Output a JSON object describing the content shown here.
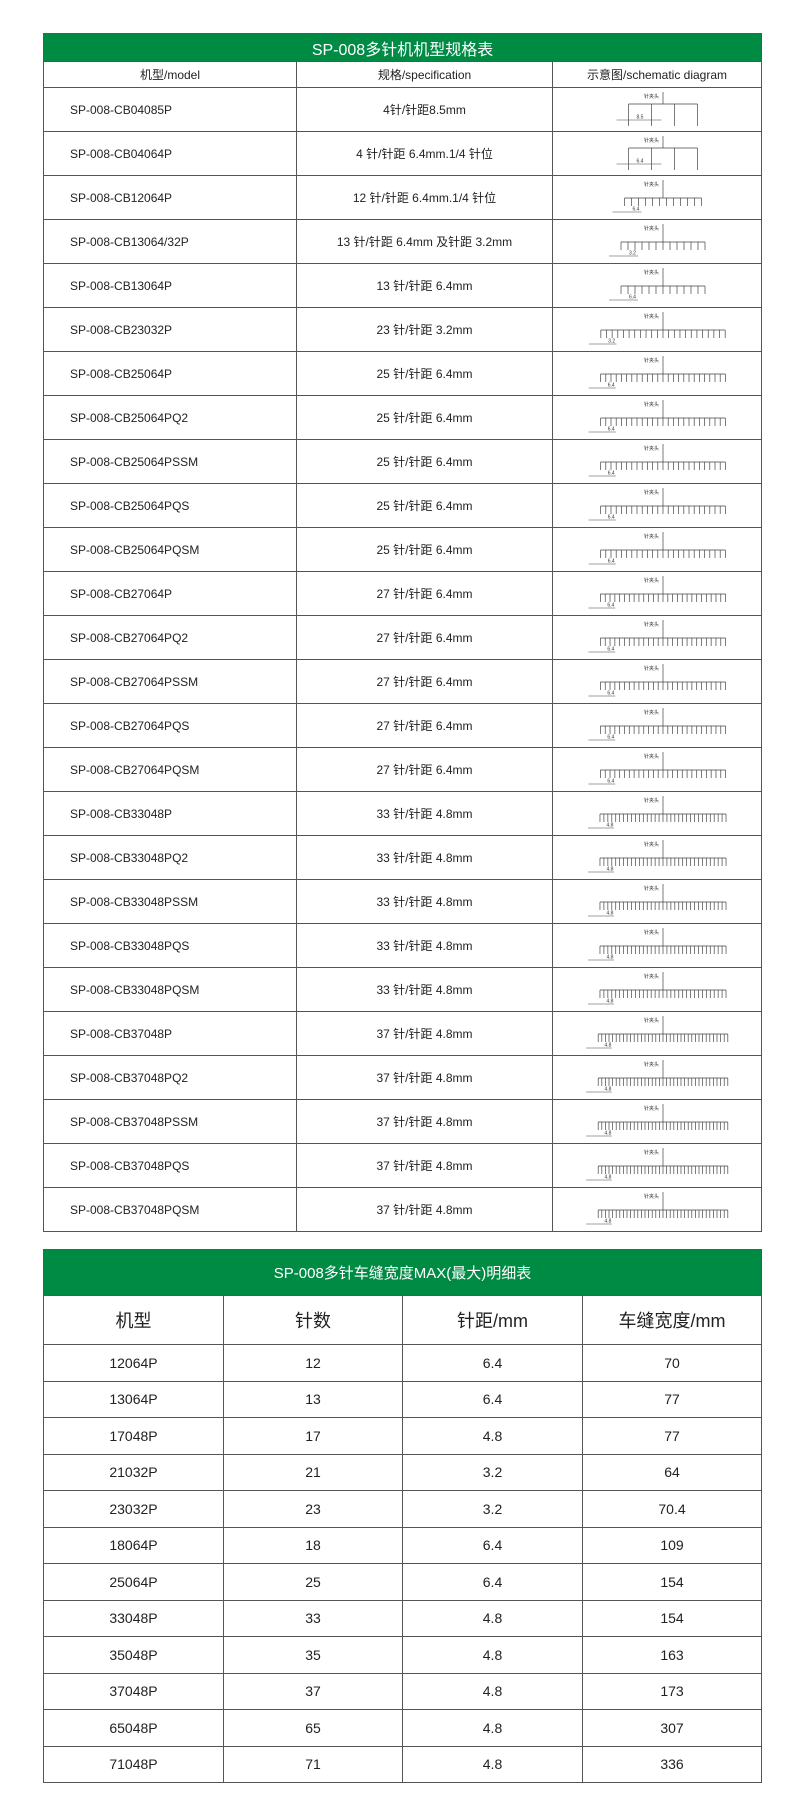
{
  "colors": {
    "header_green": "#008b45"
  },
  "spec_table": {
    "title": "SP-008多针机机型规格表",
    "headers": [
      "机型/model",
      "规格/specification",
      "示意图/schematic diagram"
    ],
    "diagram_label": "针夹头",
    "rows": [
      {
        "model": "SP-008-CB04085P",
        "spec": "4针/针距8.5mm",
        "pins": 4,
        "pitch": "8.5"
      },
      {
        "model": "SP-008-CB04064P",
        "spec": "4 针/针距 6.4mm.1/4 针位",
        "pins": 4,
        "pitch": "6.4"
      },
      {
        "model": "SP-008-CB12064P",
        "spec": "12 针/针距 6.4mm.1/4 针位",
        "pins": 12,
        "pitch": "6.4"
      },
      {
        "model": "SP-008-CB13064/32P",
        "spec": "13 针/针距 6.4mm 及针距 3.2mm",
        "pins": 13,
        "pitch": "3.2"
      },
      {
        "model": "SP-008-CB13064P",
        "spec": "13 针/针距 6.4mm",
        "pins": 13,
        "pitch": "6.4"
      },
      {
        "model": "SP-008-CB23032P",
        "spec": "23 针/针距 3.2mm",
        "pins": 23,
        "pitch": "3.2"
      },
      {
        "model": "SP-008-CB25064P",
        "spec": "25 针/针距 6.4mm",
        "pins": 25,
        "pitch": "6.4"
      },
      {
        "model": "SP-008-CB25064PQ2",
        "spec": "25 针/针距 6.4mm",
        "pins": 25,
        "pitch": "6.4"
      },
      {
        "model": "SP-008-CB25064PSSM",
        "spec": "25 针/针距 6.4mm",
        "pins": 25,
        "pitch": "6.4"
      },
      {
        "model": "SP-008-CB25064PQS",
        "spec": "25 针/针距 6.4mm",
        "pins": 25,
        "pitch": "6.4"
      },
      {
        "model": "SP-008-CB25064PQSM",
        "spec": "25 针/针距 6.4mm",
        "pins": 25,
        "pitch": "6.4"
      },
      {
        "model": "SP-008-CB27064P",
        "spec": "27 针/针距 6.4mm",
        "pins": 27,
        "pitch": "6.4"
      },
      {
        "model": "SP-008-CB27064PQ2",
        "spec": "27 针/针距 6.4mm",
        "pins": 27,
        "pitch": "6.4"
      },
      {
        "model": "SP-008-CB27064PSSM",
        "spec": "27 针/针距 6.4mm",
        "pins": 27,
        "pitch": "6.4"
      },
      {
        "model": "SP-008-CB27064PQS",
        "spec": "27 针/针距 6.4mm",
        "pins": 27,
        "pitch": "6.4"
      },
      {
        "model": "SP-008-CB27064PQSM",
        "spec": "27 针/针距 6.4mm",
        "pins": 27,
        "pitch": "6.4"
      },
      {
        "model": "SP-008-CB33048P",
        "spec": "33 针/针距 4.8mm",
        "pins": 33,
        "pitch": "4.8"
      },
      {
        "model": "SP-008-CB33048PQ2",
        "spec": "33 针/针距 4.8mm",
        "pins": 33,
        "pitch": "4.8"
      },
      {
        "model": "SP-008-CB33048PSSM",
        "spec": "33 针/针距 4.8mm",
        "pins": 33,
        "pitch": "4.8"
      },
      {
        "model": "SP-008-CB33048PQS",
        "spec": "33 针/针距 4.8mm",
        "pins": 33,
        "pitch": "4.8"
      },
      {
        "model": "SP-008-CB33048PQSM",
        "spec": "33 针/针距 4.8mm",
        "pins": 33,
        "pitch": "4.8"
      },
      {
        "model": "SP-008-CB37048P",
        "spec": "37 针/针距 4.8mm",
        "pins": 37,
        "pitch": "4.8"
      },
      {
        "model": "SP-008-CB37048PQ2",
        "spec": "37 针/针距 4.8mm",
        "pins": 37,
        "pitch": "4.8"
      },
      {
        "model": "SP-008-CB37048PSSM",
        "spec": "37 针/针距 4.8mm",
        "pins": 37,
        "pitch": "4.8"
      },
      {
        "model": "SP-008-CB37048PQS",
        "spec": "37 针/针距 4.8mm",
        "pins": 37,
        "pitch": "4.8"
      },
      {
        "model": "SP-008-CB37048PQSM",
        "spec": "37 针/针距 4.8mm",
        "pins": 37,
        "pitch": "4.8"
      }
    ]
  },
  "width_table": {
    "title": "SP-008多针车缝宽度MAX(最大)明细表",
    "headers": [
      "机型",
      "针数",
      "针距/mm",
      "车缝宽度/mm"
    ],
    "rows": [
      [
        "12064P",
        "12",
        "6.4",
        "70"
      ],
      [
        "13064P",
        "13",
        "6.4",
        "77"
      ],
      [
        "17048P",
        "17",
        "4.8",
        "77"
      ],
      [
        "21032P",
        "21",
        "3.2",
        "64"
      ],
      [
        "23032P",
        "23",
        "3.2",
        "70.4"
      ],
      [
        "18064P",
        "18",
        "6.4",
        "109"
      ],
      [
        "25064P",
        "25",
        "6.4",
        "154"
      ],
      [
        "33048P",
        "33",
        "4.8",
        "154"
      ],
      [
        "35048P",
        "35",
        "4.8",
        "163"
      ],
      [
        "37048P",
        "37",
        "4.8",
        "173"
      ],
      [
        "65048P",
        "65",
        "4.8",
        "307"
      ],
      [
        "71048P",
        "71",
        "4.8",
        "336"
      ]
    ]
  }
}
